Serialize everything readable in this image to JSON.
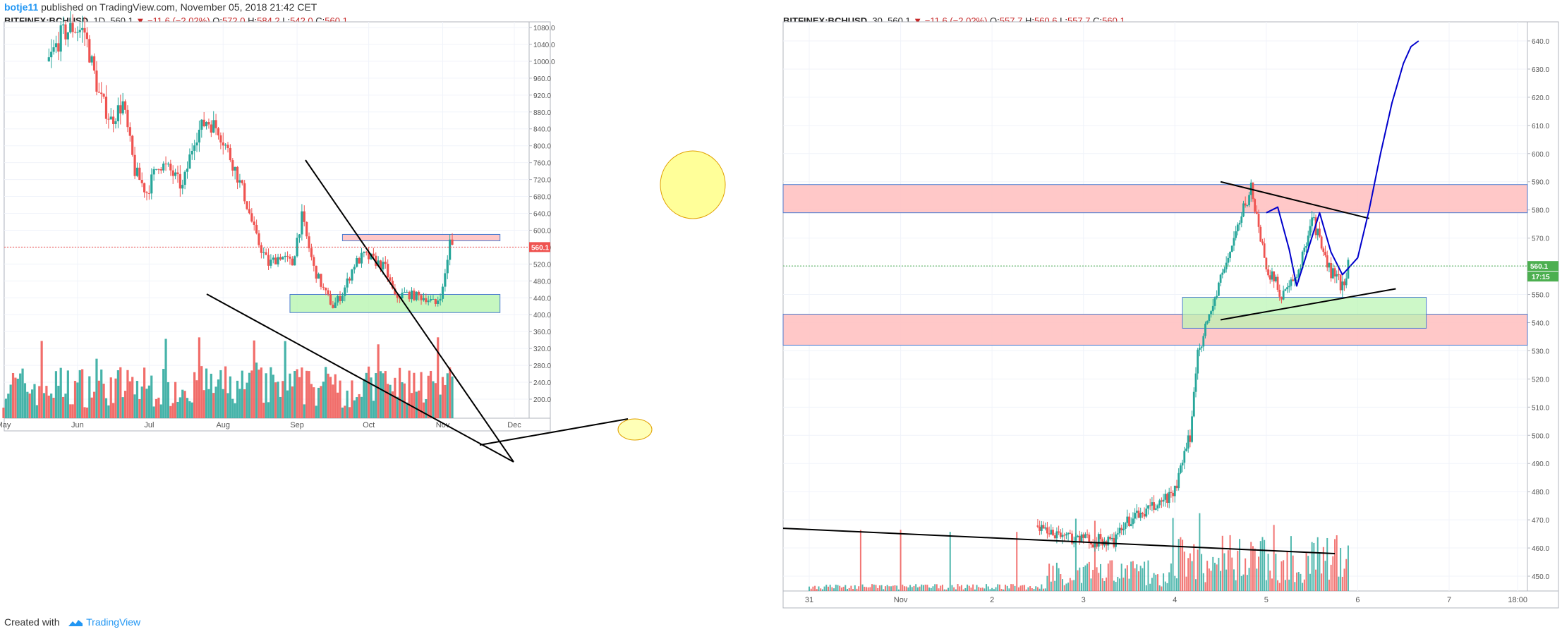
{
  "header": {
    "username": "botje11",
    "published_text": "published on TradingView.com, November 05, 2018 21:42 CET"
  },
  "footer": {
    "created_with": "Created with",
    "brand": "TradingView"
  },
  "colors": {
    "up": "#26a69a",
    "down": "#ef5350",
    "volume_up": "#26a69a",
    "volume_down": "#ef5350",
    "support_zone": "#b8f5b0",
    "resistance_zone": "#ffc2c2",
    "price_badge": "#ef5350",
    "price_badge_right": "#4caf50",
    "projection": "#0000cc",
    "annotation_circle": "#ffff99"
  },
  "chart_data": [
    {
      "type": "candlestick",
      "symbol": "BITFINEX:BCHUSD",
      "timeframe": "1D",
      "last": "560.1",
      "change": "−11.6 (−2.02%)",
      "open": "572.0",
      "high": "584.2",
      "low": "542.0",
      "close": "560.1",
      "y_ticks": [
        "1080.0",
        "1040.0",
        "1000.0",
        "960.0",
        "920.0",
        "880.0",
        "840.0",
        "800.0",
        "760.0",
        "720.0",
        "680.0",
        "640.0",
        "600.0",
        "560.0",
        "520.0",
        "480.0",
        "440.0",
        "400.0",
        "360.0",
        "320.0",
        "280.0",
        "240.0",
        "200.0"
      ],
      "x_ticks": [
        "May",
        "Jun",
        "Jul",
        "Aug",
        "Sep",
        "Oct",
        "Nov",
        "Dec"
      ],
      "price_label": "560.1",
      "ylim": [
        170,
        1095
      ],
      "series_anchors": [
        [
          "May 20",
          1000
        ],
        [
          "May 25",
          1060
        ],
        [
          "May 30",
          1080
        ],
        [
          "Jun 4",
          1070
        ],
        [
          "Jun 10",
          920
        ],
        [
          "Jun 15",
          860
        ],
        [
          "Jun 20",
          900
        ],
        [
          "Jun 25",
          740
        ],
        [
          "Jun 30",
          690
        ],
        [
          "Jul 5",
          760
        ],
        [
          "Jul 10",
          740
        ],
        [
          "Jul 15",
          700
        ],
        [
          "Jul 20",
          820
        ],
        [
          "Jul 25",
          860
        ],
        [
          "Jul 30",
          840
        ],
        [
          "Aug 5",
          760
        ],
        [
          "Aug 10",
          680
        ],
        [
          "Aug 15",
          580
        ],
        [
          "Aug 20",
          520
        ],
        [
          "Aug 25",
          540
        ],
        [
          "Aug 30",
          520
        ],
        [
          "Sep 1",
          580
        ],
        [
          "Sep 3",
          630
        ],
        [
          "Sep 8",
          510
        ],
        [
          "Sep 12",
          460
        ],
        [
          "Sep 16",
          420
        ],
        [
          "Sep 20",
          450
        ],
        [
          "Sep 25",
          520
        ],
        [
          "Sep 29",
          540
        ],
        [
          "Oct 3",
          530
        ],
        [
          "Oct 8",
          510
        ],
        [
          "Oct 12",
          440
        ],
        [
          "Oct 16",
          450
        ],
        [
          "Oct 20",
          445
        ],
        [
          "Oct 25",
          440
        ],
        [
          "Oct 29",
          425
        ],
        [
          "Nov 1",
          460
        ],
        [
          "Nov 4",
          572
        ],
        [
          "Nov 5",
          560.1
        ]
      ],
      "support_zone": [
        405,
        448
      ],
      "resistance_zone": [
        575,
        590
      ]
    },
    {
      "type": "candlestick",
      "symbol": "BITFINEX:BCHUSD",
      "timeframe": "30",
      "last": "560.1",
      "change": "−11.6 (−2.02%)",
      "open": "557.7",
      "high": "560.6",
      "low": "557.7",
      "close": "560.1",
      "y_ticks": [
        "640.0",
        "630.0",
        "620.0",
        "610.0",
        "600.0",
        "590.0",
        "580.0",
        "570.0",
        "560.0",
        "550.0",
        "540.0",
        "530.0",
        "520.0",
        "510.0",
        "500.0",
        "490.0",
        "480.0",
        "470.0",
        "460.0",
        "450.0"
      ],
      "x_ticks": [
        "31",
        "Nov",
        "2",
        "3",
        "4",
        "5",
        "6",
        "7",
        "18:00"
      ],
      "price_label": "560.1",
      "countdown_label": "17:15",
      "ylim": [
        445,
        645
      ],
      "series_anchors": [
        [
          "Nov 2 12:00",
          468
        ],
        [
          "Nov 2 18:00",
          465
        ],
        [
          "Nov 3 00:00",
          463
        ],
        [
          "Nov 3 08:00",
          462
        ],
        [
          "Nov 3 12:00",
          470
        ],
        [
          "Nov 3 18:00",
          474
        ],
        [
          "Nov 4 00:00",
          480
        ],
        [
          "Nov 4 04:00",
          500
        ],
        [
          "Nov 4 06:00",
          530
        ],
        [
          "Nov 4 08:00",
          538
        ],
        [
          "Nov 4 12:00",
          555
        ],
        [
          "Nov 4 16:00",
          572
        ],
        [
          "Nov 4 20:00",
          588
        ],
        [
          "Nov 5 00:00",
          560
        ],
        [
          "Nov 5 04:00",
          550
        ],
        [
          "Nov 5 08:00",
          555
        ],
        [
          "Nov 5 12:00",
          578
        ],
        [
          "Nov 5 16:00",
          560
        ],
        [
          "Nov 5 20:00",
          553
        ],
        [
          "Nov 5 21:30",
          560.1
        ]
      ],
      "resistance_zone_upper": [
        579,
        589
      ],
      "resistance_zone_lower": [
        532,
        543
      ],
      "support_zone": [
        538,
        549
      ],
      "projection_target": 640
    }
  ]
}
